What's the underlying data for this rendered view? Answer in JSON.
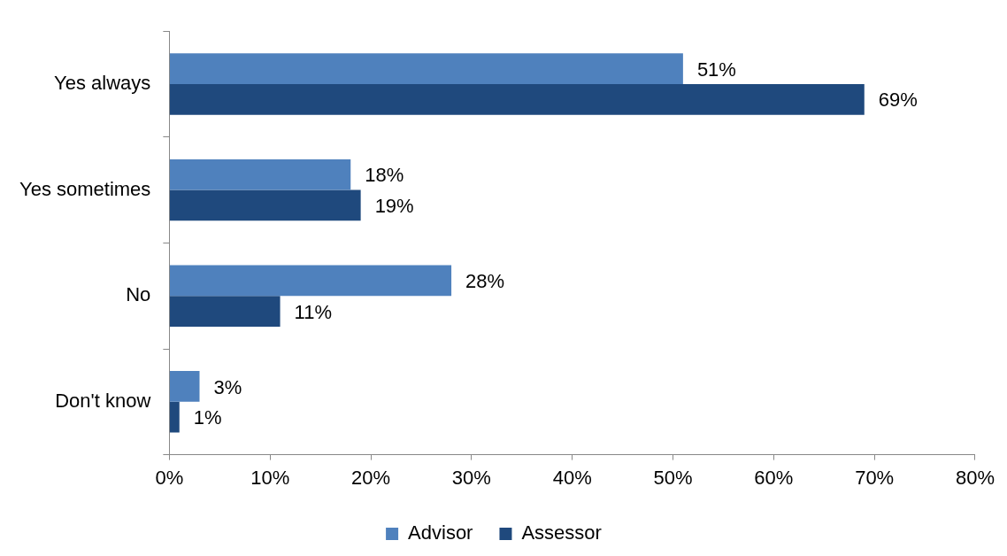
{
  "chart_data": {
    "type": "bar",
    "orientation": "horizontal",
    "categories": [
      "Yes always",
      "Yes sometimes",
      "No",
      "Don't know"
    ],
    "series": [
      {
        "name": "Advisor",
        "color": "#4f81bd",
        "values": [
          51,
          18,
          28,
          3
        ],
        "value_labels": [
          "51%",
          "18%",
          "28%",
          "3%"
        ]
      },
      {
        "name": "Assessor",
        "color": "#1f497d",
        "values": [
          69,
          19,
          11,
          1
        ],
        "value_labels": [
          "69%",
          "19%",
          "11%",
          "1%"
        ]
      }
    ],
    "xlim": [
      0,
      80
    ],
    "xticks": [
      {
        "value": 0,
        "label": "0%"
      },
      {
        "value": 10,
        "label": "10%"
      },
      {
        "value": 20,
        "label": "20%"
      },
      {
        "value": 30,
        "label": "30%"
      },
      {
        "value": 40,
        "label": "40%"
      },
      {
        "value": 50,
        "label": "50%"
      },
      {
        "value": 60,
        "label": "60%"
      },
      {
        "value": 70,
        "label": "70%"
      },
      {
        "value": 80,
        "label": "80%"
      }
    ],
    "grid": false,
    "legend": "bottom"
  }
}
